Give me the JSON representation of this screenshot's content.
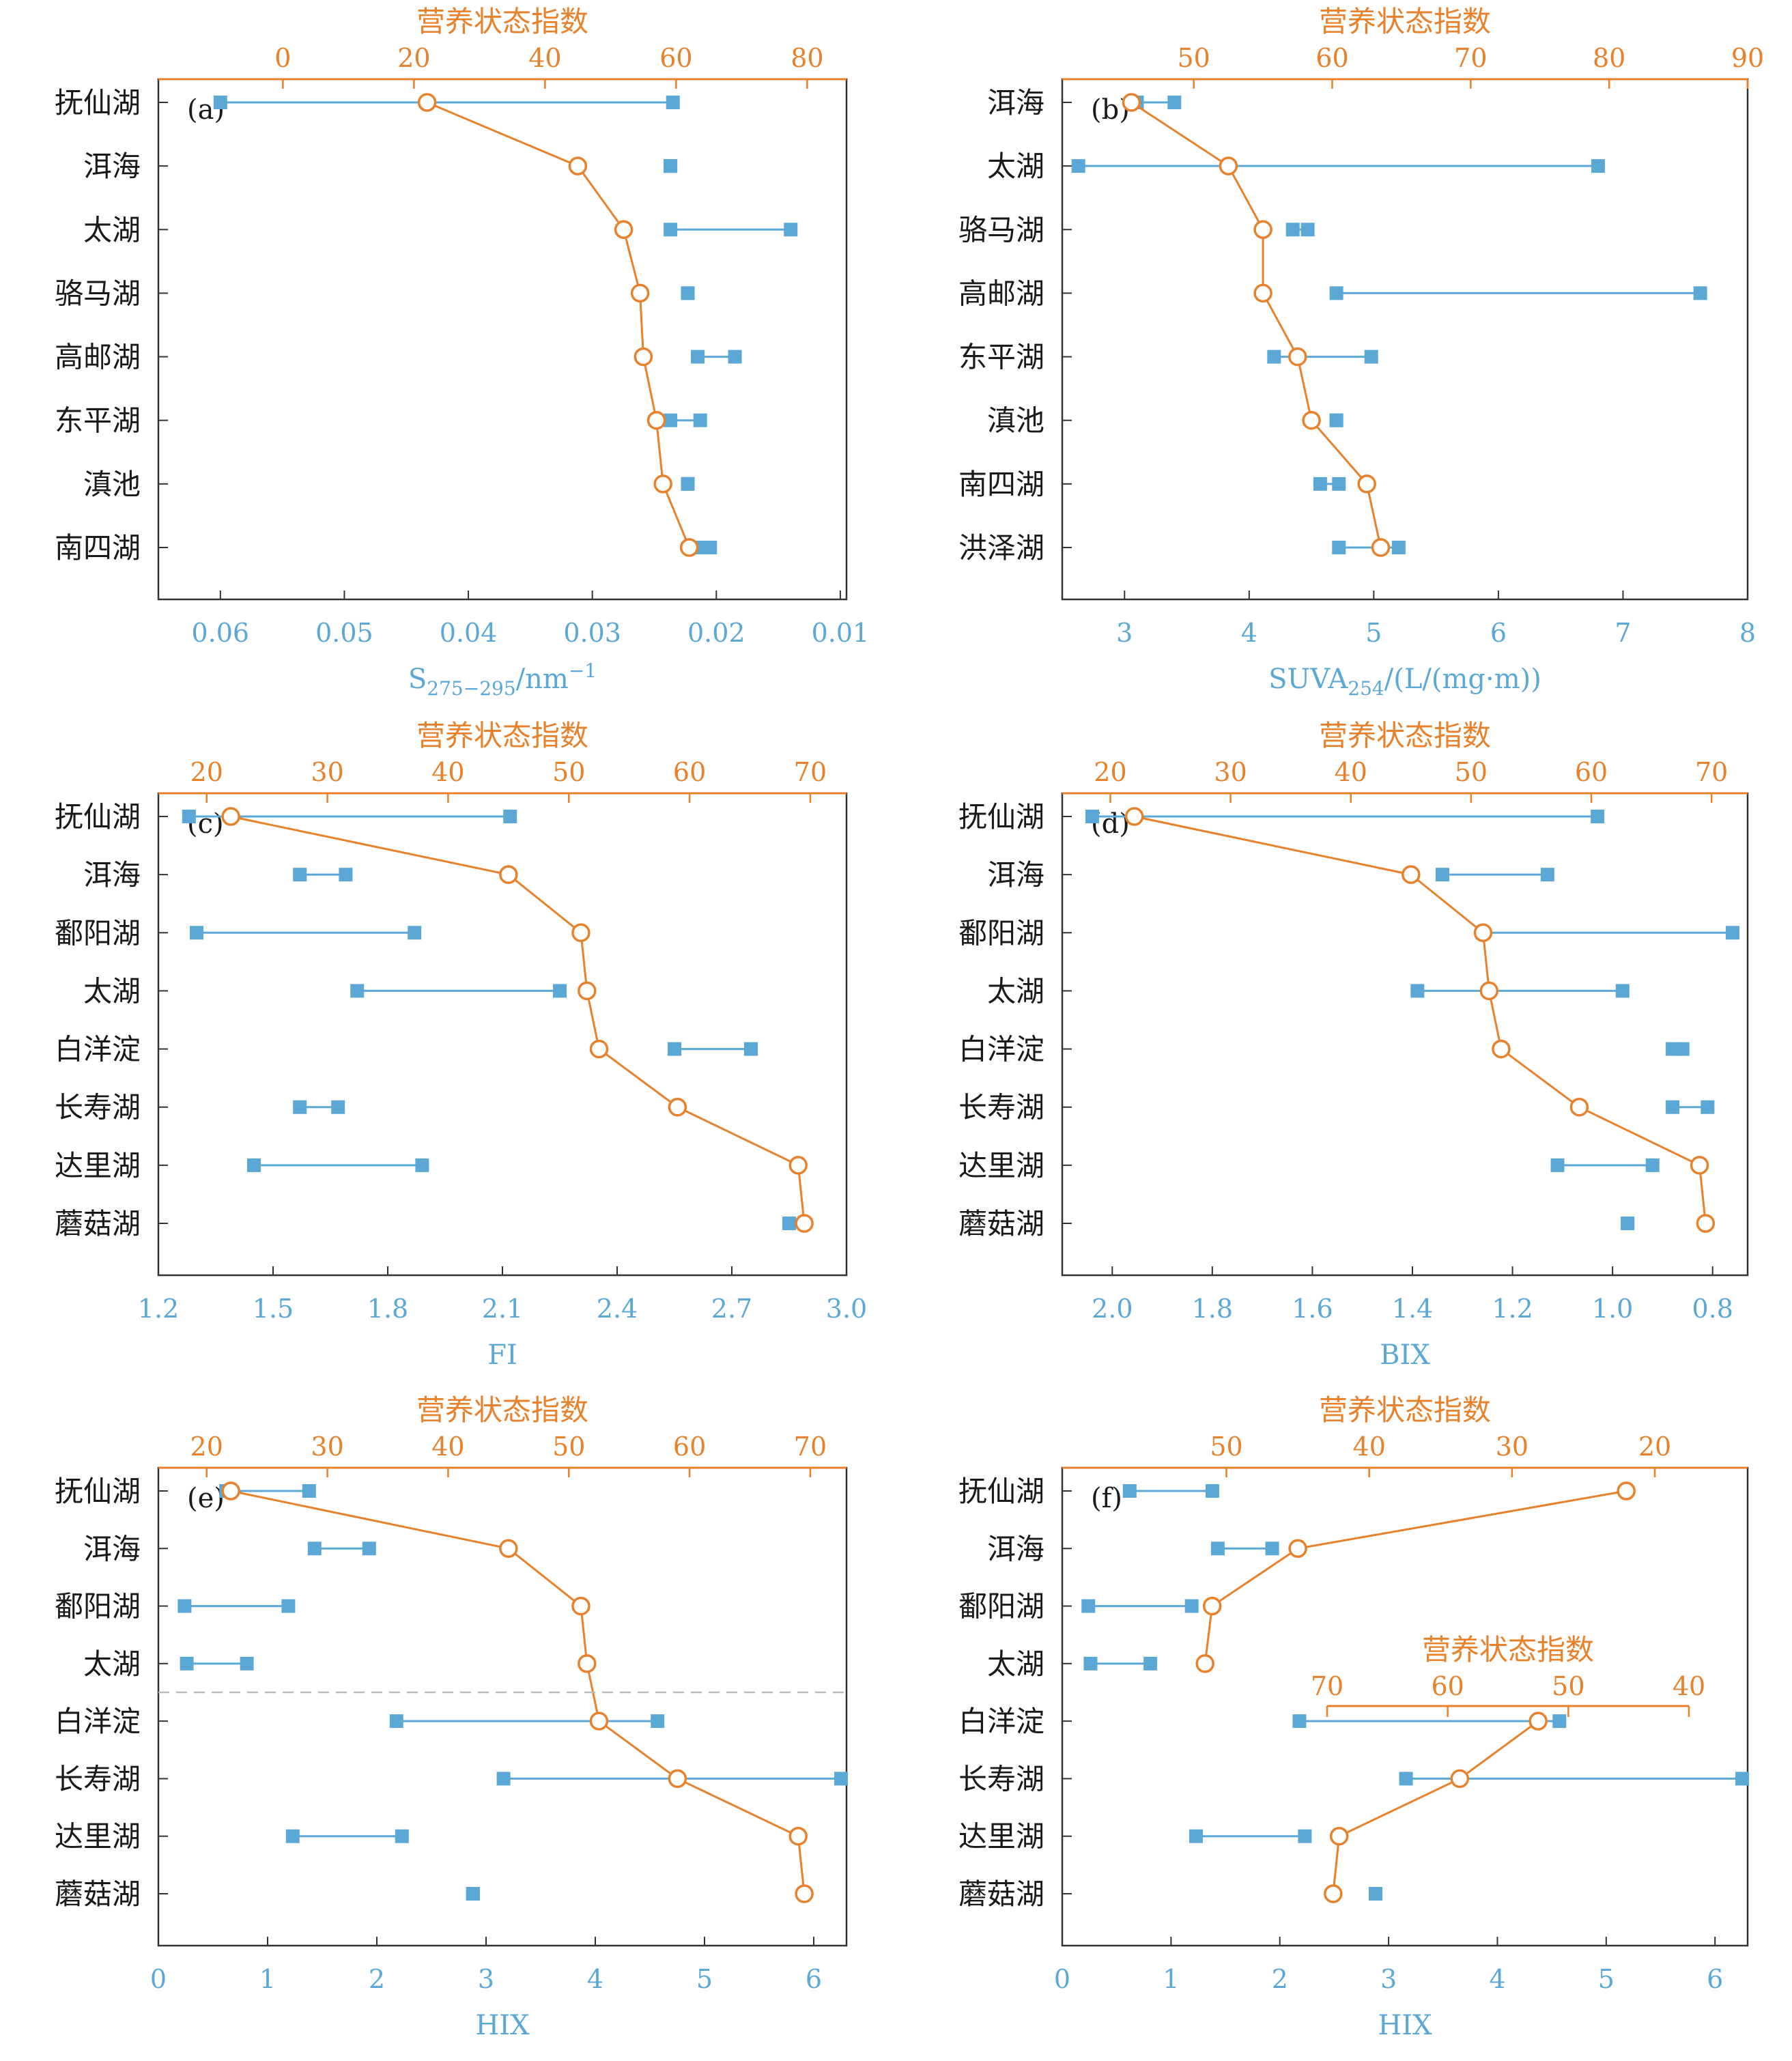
{
  "colors": {
    "range": "#5ba8d6",
    "trophic": "#e8812b",
    "frame": "#333333",
    "dash": "#bbbbbb"
  },
  "chart_data": [
    {
      "id": "a",
      "type": "dumbbell+line",
      "panel_label": "(a)",
      "lakes": [
        "抚仙湖",
        "洱海",
        "太湖",
        "骆马湖",
        "高邮湖",
        "东平湖",
        "滇池",
        "南四湖"
      ],
      "x_axis": {
        "label": "S275−295/nm−1",
        "label_main": "S",
        "label_sub": "275−295",
        "label_tail": "/nm",
        "label_sup": "−1",
        "min": 0.065,
        "max": 0.0095,
        "ticks": [
          0.06,
          0.05,
          0.04,
          0.03,
          0.02,
          0.01
        ],
        "tick_labels": [
          "0.06",
          "0.05",
          "0.04",
          "0.03",
          "0.02",
          "0.01"
        ]
      },
      "top_axis": {
        "label": "营养状态指数",
        "min": -19,
        "max": 86,
        "ticks": [
          0,
          20,
          40,
          60,
          80
        ]
      },
      "ranges": [
        [
          0.06,
          0.0235
        ],
        [
          0.0237,
          0.0237
        ],
        [
          0.0237,
          0.014
        ],
        [
          0.0223,
          0.0223
        ],
        [
          0.0215,
          0.0185
        ],
        [
          0.0237,
          0.0213
        ],
        [
          0.0223,
          0.0223
        ],
        [
          0.0215,
          0.0205
        ]
      ],
      "trophic": [
        22,
        45,
        52,
        54.5,
        55,
        57,
        58,
        62
      ]
    },
    {
      "id": "b",
      "type": "dumbbell+line",
      "panel_label": "(b)",
      "lakes": [
        "洱海",
        "太湖",
        "骆马湖",
        "高邮湖",
        "东平湖",
        "滇池",
        "南四湖",
        "洪泽湖"
      ],
      "x_axis": {
        "label": "SUVA254/(L/(mg·m))",
        "label_main": "SUVA",
        "label_sub": "254",
        "label_tail": "/(L/(mg·m))",
        "min": 2.5,
        "max": 8,
        "ticks": [
          3,
          4,
          5,
          6,
          7,
          8
        ],
        "tick_labels": [
          "3",
          "4",
          "5",
          "6",
          "7",
          "8"
        ]
      },
      "top_axis": {
        "label": "营养状态指数",
        "min": 40.5,
        "max": 90,
        "ticks": [
          50,
          60,
          70,
          80,
          90
        ]
      },
      "ranges": [
        [
          3.1,
          3.4
        ],
        [
          2.63,
          6.8
        ],
        [
          4.35,
          4.47
        ],
        [
          4.7,
          7.62
        ],
        [
          4.2,
          4.98
        ],
        [
          4.7,
          4.7
        ],
        [
          4.57,
          4.72
        ],
        [
          4.72,
          5.2
        ]
      ],
      "trophic": [
        45.5,
        52.5,
        55,
        55,
        57.5,
        58.5,
        62.5,
        63.5
      ]
    },
    {
      "id": "c",
      "type": "dumbbell+line",
      "panel_label": "(c)",
      "lakes": [
        "抚仙湖",
        "洱海",
        "鄱阳湖",
        "太湖",
        "白洋淀",
        "长寿湖",
        "达里湖",
        "蘑菇湖"
      ],
      "x_axis": {
        "label": "FI",
        "min": 1.2,
        "max": 3.0,
        "ticks": [
          1.2,
          1.5,
          1.8,
          2.1,
          2.4,
          2.7,
          3.0
        ],
        "tick_labels": [
          "1.2",
          "1.5",
          "1.8",
          "2.1",
          "2.4",
          "2.7",
          "3.0"
        ]
      },
      "top_axis": {
        "label": "营养状态指数",
        "min": 16,
        "max": 73,
        "ticks": [
          20,
          30,
          40,
          50,
          60,
          70
        ]
      },
      "ranges": [
        [
          1.28,
          2.12
        ],
        [
          1.57,
          1.69
        ],
        [
          1.3,
          1.87
        ],
        [
          1.72,
          2.25
        ],
        [
          2.55,
          2.75
        ],
        [
          1.57,
          1.67
        ],
        [
          1.45,
          1.89
        ],
        [
          2.85,
          2.85
        ]
      ],
      "trophic": [
        22,
        45,
        51,
        51.5,
        52.5,
        59,
        69,
        69.5
      ]
    },
    {
      "id": "d",
      "type": "dumbbell+line",
      "panel_label": "(d)",
      "lakes": [
        "抚仙湖",
        "洱海",
        "鄱阳湖",
        "太湖",
        "白洋淀",
        "长寿湖",
        "达里湖",
        "蘑菇湖"
      ],
      "x_axis": {
        "label": "BIX",
        "min": 2.1,
        "max": 0.73,
        "ticks": [
          2.0,
          1.8,
          1.6,
          1.4,
          1.2,
          1.0,
          0.8
        ],
        "tick_labels": [
          "2.0",
          "1.8",
          "1.6",
          "1.4",
          "1.2",
          "1.0",
          "0.8"
        ]
      },
      "top_axis": {
        "label": "营养状态指数",
        "min": 16,
        "max": 73,
        "ticks": [
          20,
          30,
          40,
          50,
          60,
          70
        ]
      },
      "ranges": [
        [
          2.04,
          1.03
        ],
        [
          1.34,
          1.13
        ],
        [
          1.26,
          0.76
        ],
        [
          1.39,
          0.98
        ],
        [
          0.88,
          0.86
        ],
        [
          0.88,
          0.81
        ],
        [
          1.11,
          0.92
        ],
        [
          0.97,
          0.97
        ]
      ],
      "trophic": [
        22,
        45,
        51,
        51.5,
        52.5,
        59,
        69,
        69.5
      ]
    },
    {
      "id": "e",
      "type": "dumbbell+line",
      "panel_label": "(e)",
      "lakes": [
        "抚仙湖",
        "洱海",
        "鄱阳湖",
        "太湖",
        "白洋淀",
        "长寿湖",
        "达里湖",
        "蘑菇湖"
      ],
      "x_axis": {
        "label": "HIX",
        "min": 0,
        "max": 6.3,
        "ticks": [
          0,
          1,
          2,
          3,
          4,
          5,
          6
        ],
        "tick_labels": [
          "0",
          "1",
          "2",
          "3",
          "4",
          "5",
          "6"
        ]
      },
      "top_axis": {
        "label": "营养状态指数",
        "min": 16,
        "max": 73,
        "ticks": [
          20,
          30,
          40,
          50,
          60,
          70
        ]
      },
      "ranges": [
        [
          0.62,
          1.38
        ],
        [
          1.43,
          1.93
        ],
        [
          0.24,
          1.19
        ],
        [
          0.26,
          0.81
        ],
        [
          2.18,
          4.57
        ],
        [
          3.16,
          6.25
        ],
        [
          1.23,
          2.23
        ],
        [
          2.88,
          2.88
        ]
      ],
      "trophic": [
        22,
        45,
        51,
        51.5,
        52.5,
        59,
        69,
        69.5
      ]
    },
    {
      "id": "f",
      "type": "dumbbell+line",
      "panel_label": "(f)",
      "lakes": [
        "抚仙湖",
        "洱海",
        "鄱阳湖",
        "太湖",
        "白洋淀",
        "长寿湖",
        "达里湖",
        "蘑菇湖"
      ],
      "x_axis": {
        "label": "HIX",
        "min": 0,
        "max": 6.3,
        "ticks": [
          0,
          1,
          2,
          3,
          4,
          5,
          6
        ],
        "tick_labels": [
          "0",
          "1",
          "2",
          "3",
          "4",
          "5",
          "6"
        ]
      },
      "top_axis": {
        "label": "营养状态指数",
        "min": 61.5,
        "max": 13.5,
        "ticks": [
          50,
          40,
          30,
          20
        ]
      },
      "inset_axis": {
        "label": "营养状态指数",
        "min": 70,
        "max": 40,
        "ticks": [
          70,
          60,
          50,
          40
        ]
      },
      "ranges": [
        [
          0.62,
          1.38
        ],
        [
          1.43,
          1.93
        ],
        [
          0.24,
          1.19
        ],
        [
          0.26,
          0.81
        ],
        [
          2.18,
          4.57
        ],
        [
          3.16,
          6.25
        ],
        [
          1.23,
          2.23
        ],
        [
          2.88,
          2.88
        ]
      ],
      "trophic": [
        22,
        45,
        51,
        51.5,
        52.5,
        59,
        69,
        69.5
      ]
    }
  ]
}
